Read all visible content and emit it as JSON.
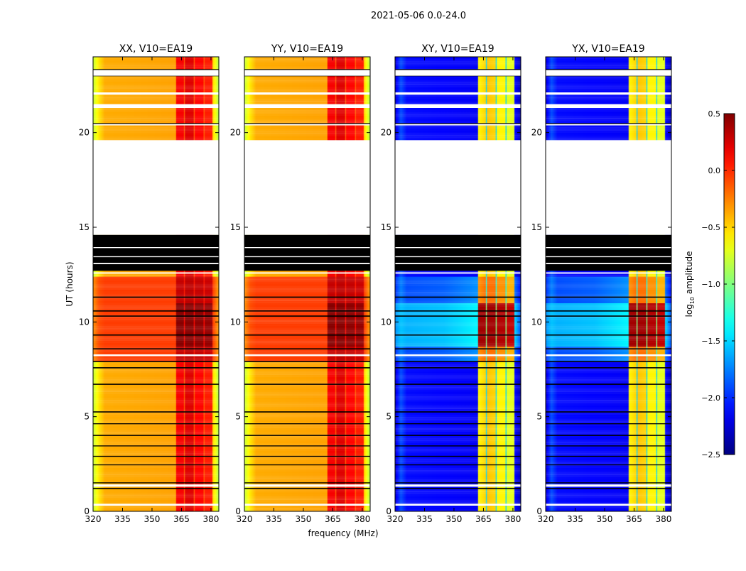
{
  "chart_data": {
    "type": "heatmap",
    "title": "2021-05-06 0.0-24.0",
    "xlabel": "frequency (MHz)",
    "ylabel": "UT (hours)",
    "xlim": [
      320,
      384
    ],
    "ylim": [
      0,
      24
    ],
    "xticks": [
      320,
      335,
      350,
      365,
      380
    ],
    "yticks": [
      0,
      5,
      10,
      15,
      20
    ],
    "colorbar": {
      "label_main": "log",
      "label_sub": "10",
      "label_rest": " amplitude",
      "colormap": "jet",
      "range": [
        -2.5,
        0.5
      ],
      "ticks": [
        0.5,
        0.0,
        -0.5,
        -1.0,
        -1.5,
        -2.0,
        -2.5
      ],
      "tick_labels": [
        "0.5",
        "0.0",
        "−0.5",
        "−1.0",
        "−1.5",
        "−2.0",
        "−2.5"
      ]
    },
    "time_bin_hours": 0.1,
    "warm_hours": [
      7.9,
      12.4
    ],
    "hot_hours": [
      8.7,
      11.0
    ],
    "gaps_white": [
      [
        23.0,
        23.3
      ],
      [
        21.3,
        21.5
      ],
      [
        14.6,
        19.6
      ],
      [
        22.05,
        22.12
      ],
      [
        20.38,
        20.45
      ],
      [
        8.2,
        8.28
      ],
      [
        1.33,
        1.42
      ],
      [
        0.32,
        0.4
      ],
      [
        13.05,
        13.12
      ],
      [
        13.42,
        13.47
      ],
      [
        13.9,
        13.95
      ],
      [
        12.55,
        12.62
      ]
    ],
    "flagged_black": [
      [
        12.7,
        14.6
      ],
      [
        11.28,
        11.34
      ],
      [
        10.55,
        10.61
      ],
      [
        10.28,
        10.34
      ],
      [
        9.28,
        9.34
      ],
      [
        8.55,
        8.61
      ],
      [
        7.88,
        7.94
      ],
      [
        7.55,
        7.61
      ],
      [
        6.68,
        6.74
      ],
      [
        5.22,
        5.28
      ],
      [
        4.6,
        4.65
      ],
      [
        3.98,
        4.04
      ],
      [
        3.43,
        3.48
      ],
      [
        2.88,
        2.93
      ],
      [
        2.43,
        2.48
      ],
      [
        1.48,
        1.53
      ],
      [
        1.18,
        1.24
      ],
      [
        20.45,
        20.5
      ],
      [
        23.3,
        23.35
      ],
      [
        22.98,
        23.02
      ]
    ],
    "panels": [
      {
        "title": "XX, V10=EA19",
        "kind": "parallel"
      },
      {
        "title": "YY, V10=EA19",
        "kind": "parallel"
      },
      {
        "title": "XY, V10=EA19",
        "kind": "cross"
      },
      {
        "title": "YX, V10=EA19",
        "kind": "cross"
      }
    ],
    "profiles": {
      "parallel": {
        "normal": [
          [
            320,
            -0.8
          ],
          [
            323,
            -0.55
          ],
          [
            326,
            -0.38
          ],
          [
            362,
            -0.35
          ],
          [
            362.5,
            0.15
          ],
          [
            366,
            0.15
          ],
          [
            366.5,
            -0.15
          ],
          [
            367,
            0.22
          ],
          [
            371,
            0.22
          ],
          [
            371.5,
            -0.15
          ],
          [
            372,
            0.12
          ],
          [
            376,
            0.12
          ],
          [
            376.5,
            -0.15
          ],
          [
            377,
            0.05
          ],
          [
            380.5,
            0.05
          ],
          [
            381,
            -0.5
          ],
          [
            384,
            -0.85
          ]
        ],
        "warm": [
          [
            320,
            -0.3
          ],
          [
            323,
            -0.1
          ],
          [
            326,
            -0.05
          ],
          [
            362,
            -0.05
          ],
          [
            362.5,
            0.3
          ],
          [
            366,
            0.3
          ],
          [
            366.5,
            0.05
          ],
          [
            367,
            0.32
          ],
          [
            371,
            0.32
          ],
          [
            371.5,
            0.05
          ],
          [
            372,
            0.3
          ],
          [
            376,
            0.3
          ],
          [
            376.5,
            0.05
          ],
          [
            377,
            0.28
          ],
          [
            380.5,
            0.28
          ],
          [
            381,
            -0.05
          ],
          [
            384,
            -0.35
          ]
        ],
        "hot": [
          [
            320,
            -0.3
          ],
          [
            323,
            -0.1
          ],
          [
            326,
            -0.05
          ],
          [
            362,
            -0.05
          ],
          [
            362.5,
            0.48
          ],
          [
            366,
            0.48
          ],
          [
            366.5,
            0.1
          ],
          [
            367,
            0.48
          ],
          [
            371,
            0.48
          ],
          [
            371.5,
            0.1
          ],
          [
            372,
            0.46
          ],
          [
            376,
            0.46
          ],
          [
            376.5,
            0.1
          ],
          [
            377,
            0.44
          ],
          [
            380.5,
            0.44
          ],
          [
            381,
            -0.05
          ],
          [
            384,
            -0.35
          ]
        ]
      },
      "cross": {
        "normal": [
          [
            320,
            -2.25
          ],
          [
            323,
            -1.9
          ],
          [
            326,
            -2.1
          ],
          [
            362,
            -2.15
          ],
          [
            362.5,
            -0.6
          ],
          [
            366,
            -0.5
          ],
          [
            366.5,
            -1.5
          ],
          [
            367,
            -0.45
          ],
          [
            371,
            -0.5
          ],
          [
            371.5,
            -1.5
          ],
          [
            372,
            -0.6
          ],
          [
            376,
            -0.6
          ],
          [
            376.5,
            -1.5
          ],
          [
            377,
            -0.7
          ],
          [
            380.5,
            -0.7
          ],
          [
            381,
            -2.1
          ],
          [
            384,
            -2.35
          ]
        ],
        "warm": [
          [
            320,
            -2.0
          ],
          [
            323,
            -1.75
          ],
          [
            326,
            -1.9
          ],
          [
            345,
            -1.85
          ],
          [
            362,
            -1.7
          ],
          [
            362.5,
            -0.3
          ],
          [
            366,
            -0.2
          ],
          [
            366.5,
            -1.3
          ],
          [
            367,
            -0.2
          ],
          [
            371,
            -0.2
          ],
          [
            371.5,
            -1.3
          ],
          [
            372,
            -0.3
          ],
          [
            376,
            -0.3
          ],
          [
            376.5,
            -1.3
          ],
          [
            377,
            -0.4
          ],
          [
            380.5,
            -0.4
          ],
          [
            381,
            -1.8
          ],
          [
            384,
            -2.1
          ]
        ],
        "hot": [
          [
            320,
            -1.7
          ],
          [
            323,
            -1.55
          ],
          [
            326,
            -1.6
          ],
          [
            345,
            -1.55
          ],
          [
            362,
            -1.4
          ],
          [
            362.5,
            0.4
          ],
          [
            366,
            0.4
          ],
          [
            366.5,
            -1.0
          ],
          [
            367,
            0.4
          ],
          [
            371,
            0.4
          ],
          [
            371.5,
            -1.0
          ],
          [
            372,
            0.35
          ],
          [
            376,
            0.35
          ],
          [
            376.5,
            -1.0
          ],
          [
            377,
            0.3
          ],
          [
            380.5,
            0.3
          ],
          [
            381,
            -1.5
          ],
          [
            384,
            -1.9
          ]
        ]
      }
    }
  }
}
